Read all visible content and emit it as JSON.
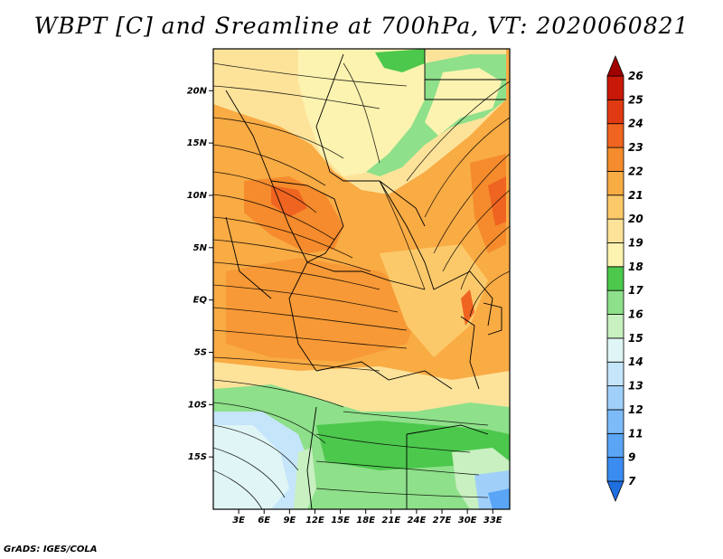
{
  "title": "WBPT [C] and Sreamline at 700hPa, VT: 2020060821",
  "credit": "GrADS: IGES/COLA",
  "map": {
    "lon_range": [
      0,
      35
    ],
    "lat_range": [
      -20,
      24
    ],
    "x_ticks": [
      {
        "value": 3,
        "label": "3E"
      },
      {
        "value": 6,
        "label": "6E"
      },
      {
        "value": 9,
        "label": "9E"
      },
      {
        "value": 12,
        "label": "12E"
      },
      {
        "value": 15,
        "label": "15E"
      },
      {
        "value": 18,
        "label": "18E"
      },
      {
        "value": 21,
        "label": "21E"
      },
      {
        "value": 24,
        "label": "24E"
      },
      {
        "value": 27,
        "label": "27E"
      },
      {
        "value": 30,
        "label": "30E"
      },
      {
        "value": 33,
        "label": "33E"
      }
    ],
    "y_ticks": [
      {
        "value": 20,
        "label": "20N"
      },
      {
        "value": 15,
        "label": "15N"
      },
      {
        "value": 10,
        "label": "10N"
      },
      {
        "value": 5,
        "label": "5N"
      },
      {
        "value": 0,
        "label": "EQ"
      },
      {
        "value": -5,
        "label": "5S"
      },
      {
        "value": -10,
        "label": "10S"
      },
      {
        "value": -15,
        "label": "15S"
      }
    ]
  },
  "colorbar": {
    "labels": [
      "7",
      "9",
      "11",
      "12",
      "13",
      "14",
      "15",
      "16",
      "17",
      "18",
      "19",
      "20",
      "21",
      "22",
      "23",
      "24",
      "25",
      "26"
    ],
    "colors": [
      "#1e6fe0",
      "#3b8cf0",
      "#5aa5f5",
      "#7dbbf8",
      "#a0d0fa",
      "#c5e5fb",
      "#e0f5f5",
      "#c8f0c0",
      "#8ee08a",
      "#4cc84c",
      "#fdf3b0",
      "#fde39a",
      "#fcc96a",
      "#f9ab44",
      "#f58b2c",
      "#ef6420",
      "#e03a12",
      "#c81808",
      "#a00000"
    ]
  }
}
